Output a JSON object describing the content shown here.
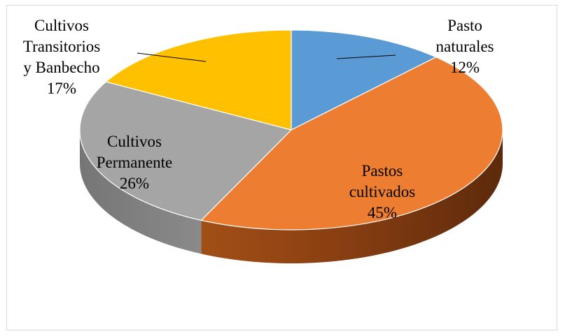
{
  "chart_data": {
    "type": "pie",
    "title": "",
    "categories": [
      "Pasto naturales",
      "Pastos cultivados",
      "Cultivos Permanente",
      "Cultivos Transitorios y Banbecho"
    ],
    "values": [
      12,
      45,
      26,
      17
    ],
    "colors": [
      "#5b9bd5",
      "#ed7d31",
      "#a5a5a5",
      "#ffc000"
    ],
    "label_lines": [
      [
        "Pasto",
        "naturales",
        "12%"
      ],
      [
        "Pastos",
        "cultivados",
        "45%"
      ],
      [
        "Cultivos",
        "Permanente",
        "26%"
      ],
      [
        "Cultivos",
        "Transitorios",
        "y Banbecho",
        "17%"
      ]
    ],
    "style": "3d"
  }
}
